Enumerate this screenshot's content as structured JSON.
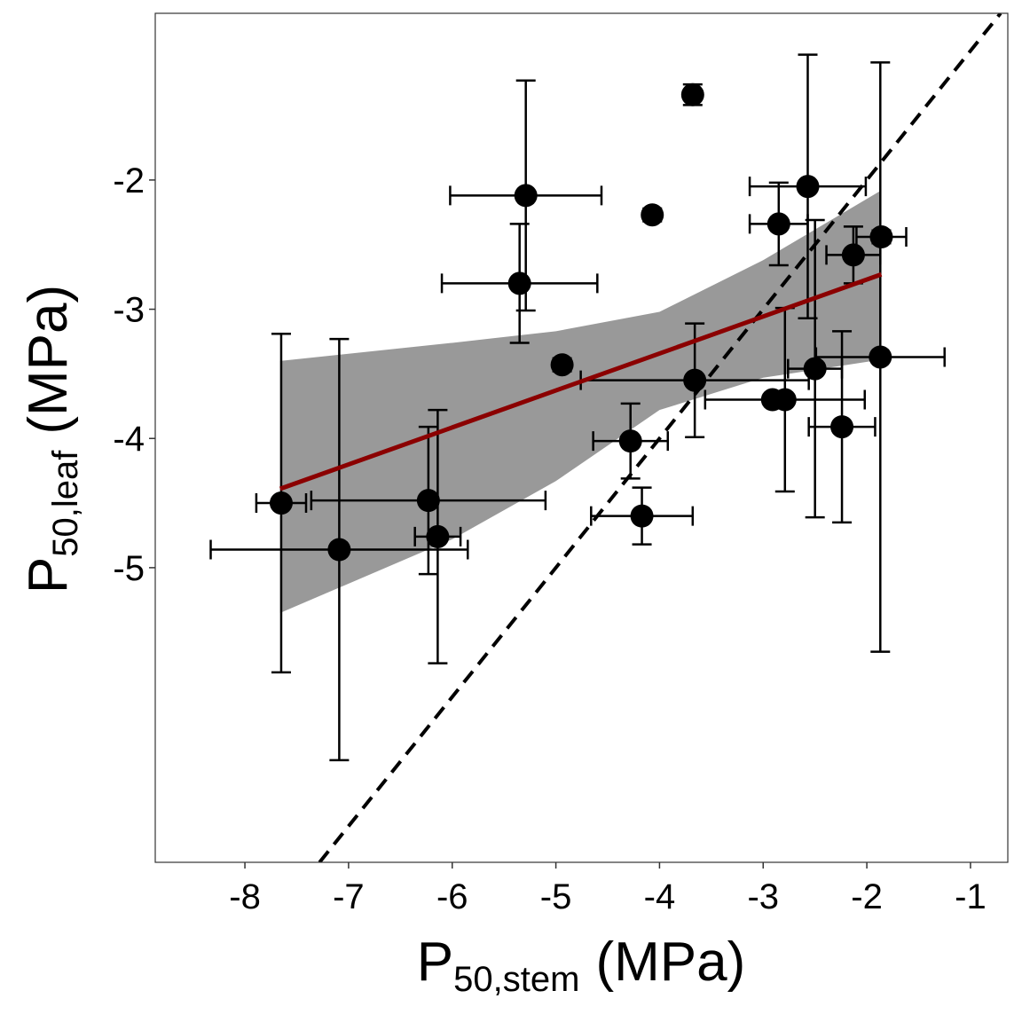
{
  "chart_data": {
    "type": "scatter",
    "x_label": {
      "main": "P",
      "sub": "50,stem",
      "unit": "(MPa)"
    },
    "y_label": {
      "main": "P",
      "sub": "50,leaf",
      "unit": "(MPa)"
    },
    "xlim": [
      -8.865,
      -0.64
    ],
    "ylim": [
      -7.28,
      -0.71
    ],
    "xticks": [
      -8,
      -7,
      -6,
      -5,
      -4,
      -3,
      -2,
      -1
    ],
    "yticks": [
      -2,
      -3,
      -4,
      -5
    ],
    "grid": false,
    "series": [
      {
        "color": "#000000",
        "x": [
          -7.65,
          -7.09,
          -6.23,
          -6.14,
          -5.35,
          -5.29,
          -4.94,
          -4.28,
          -4.17,
          -4.07,
          -3.68,
          -3.66,
          -2.91,
          -2.79,
          -2.85,
          -2.57,
          -2.5,
          -2.24,
          -2.13,
          -1.86,
          -1.87
        ],
        "values": [
          -4.5,
          -4.86,
          -4.48,
          -4.76,
          -2.8,
          -2.12,
          -3.43,
          -4.02,
          -4.6,
          -2.27,
          -1.34,
          -3.55,
          -3.7,
          -3.7,
          -2.34,
          -2.05,
          -3.46,
          -3.91,
          -2.58,
          -2.44,
          -3.37
        ],
        "xerr": [
          0.24,
          1.24,
          1.13,
          0.22,
          0.75,
          0.73,
          0.03,
          0.36,
          0.49,
          0.03,
          0.03,
          1.1,
          0.03,
          0.77,
          0.28,
          0.56,
          0.26,
          0.32,
          0.26,
          0.24,
          0.62
        ],
        "yerr": [
          1.31,
          1.63,
          0.57,
          0.98,
          0.46,
          0.89,
          0.05,
          0.29,
          0.22,
          0.05,
          0.08,
          0.44,
          0.03,
          0.71,
          0.32,
          1.02,
          1.15,
          0.74,
          0.22,
          0.05,
          2.28
        ]
      }
    ],
    "fit": {
      "color": "#8b0000",
      "x": [
        -7.66,
        -1.86
      ],
      "values": [
        -4.39,
        -2.73
      ]
    },
    "band": {
      "color": "#999999",
      "x": [
        -7.66,
        -6,
        -5,
        -4,
        -3,
        -1.86
      ],
      "upper": [
        -3.4,
        -3.26,
        -3.17,
        -3.02,
        -2.62,
        -2.08
      ],
      "lower": [
        -5.35,
        -4.78,
        -4.33,
        -3.78,
        -3.53,
        -3.39
      ]
    }
  }
}
